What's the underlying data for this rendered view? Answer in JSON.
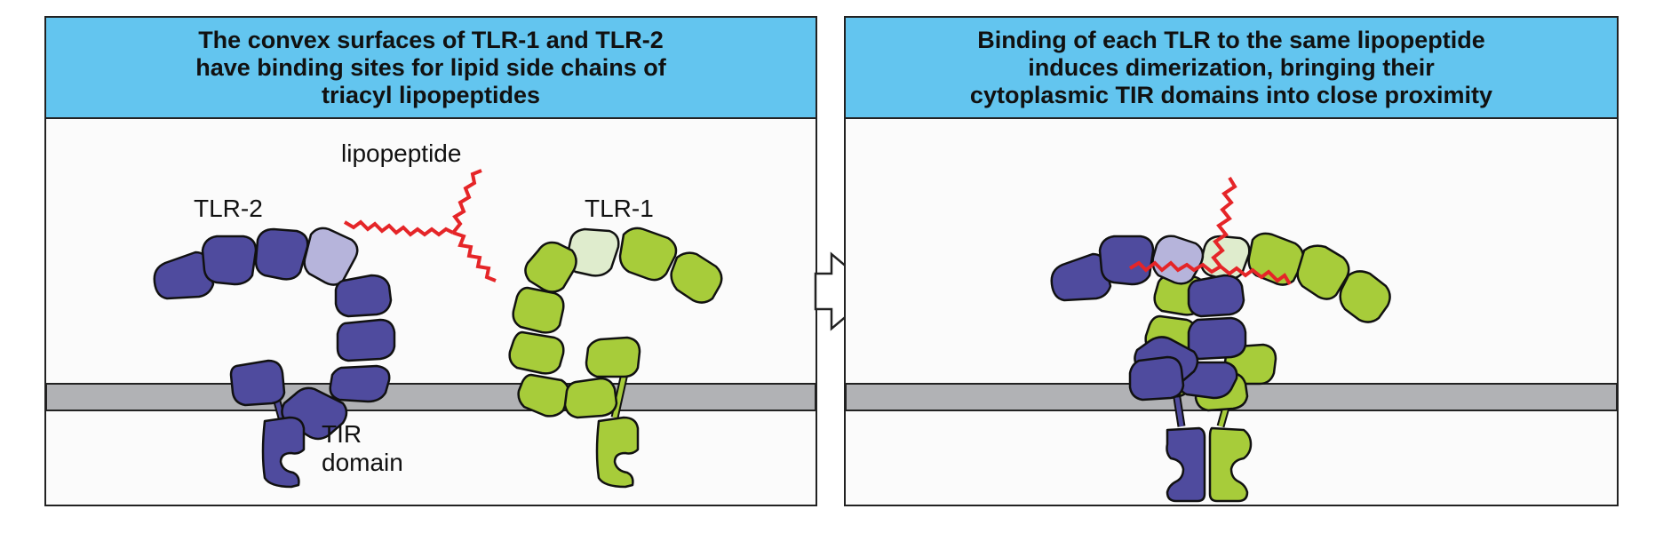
{
  "panels": [
    {
      "header_lines": [
        "The convex surfaces of TLR-1 and TLR-2",
        "have binding sites for lipid side chains of",
        "triacyl lipopeptides"
      ],
      "labels": {
        "lipopeptide": "lipopeptide",
        "tlr2": "TLR-2",
        "tlr1": "TLR-1",
        "tir_line1": "TIR",
        "tir_line2": "domain"
      }
    },
    {
      "header_lines": [
        "Binding of each TLR to the same lipopeptide",
        "induces dimerization, bringing their",
        "cytoplasmic TIR domains into close proximity"
      ]
    }
  ],
  "colors": {
    "header": "#63c5ef",
    "tlr2": "#4f4b9e",
    "tlr2_binding_site": "#b6b4db",
    "tlr1": "#a7cc3a",
    "tlr1_binding_site": "#dfeccd",
    "membrane": "#b1b2b5",
    "lipopeptide": "#e52528"
  }
}
